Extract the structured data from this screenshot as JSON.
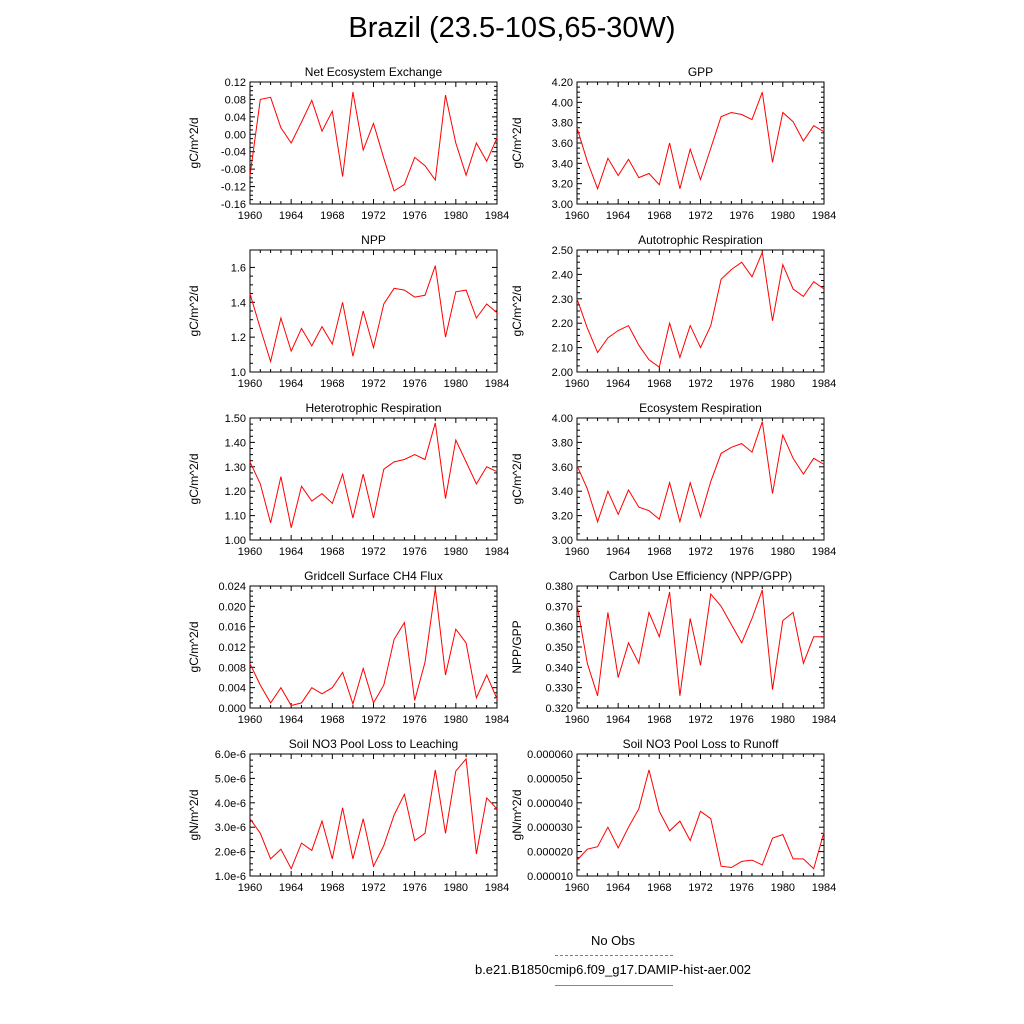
{
  "title": "Brazil (23.5-10S,65-30W)",
  "legend": {
    "items": [
      {
        "label": "No Obs",
        "color": "#7070e0",
        "style": "dashed"
      },
      {
        "label": "b.e21.B1850cmip6.f09_g17.DAMIP-hist-aer.002",
        "color": "#e06060",
        "style": "solid"
      }
    ]
  },
  "line_color": "#ff0000",
  "chart_data": [
    {
      "type": "line",
      "title": "Net Ecosystem Exchange",
      "ylabel": "gC/m^2/d",
      "xlim": [
        1960,
        1984
      ],
      "ylim": [
        -0.16,
        0.12
      ],
      "xticks": [
        1960,
        1964,
        1968,
        1972,
        1976,
        1980,
        1984
      ],
      "yticks": [
        -0.16,
        -0.12,
        -0.08,
        -0.04,
        0.0,
        0.04,
        0.08,
        0.12
      ],
      "ytick_labels": [
        "-0.16",
        "-0.12",
        "-0.08",
        "-0.04",
        "0.00",
        "0.04",
        "0.08",
        "0.12"
      ],
      "x": [
        1960,
        1961,
        1962,
        1963,
        1964,
        1965,
        1966,
        1967,
        1968,
        1969,
        1970,
        1971,
        1972,
        1973,
        1974,
        1975,
        1976,
        1977,
        1978,
        1979,
        1980,
        1981,
        1982,
        1983,
        1984
      ],
      "series": [
        {
          "values": [
            -0.095,
            0.08,
            0.085,
            0.015,
            -0.02,
            0.028,
            0.078,
            0.007,
            0.053,
            -0.097,
            0.097,
            -0.036,
            0.025,
            -0.055,
            -0.13,
            -0.115,
            -0.053,
            -0.072,
            -0.105,
            0.09,
            -0.02,
            -0.094,
            -0.02,
            -0.062,
            -0.008
          ]
        }
      ]
    },
    {
      "type": "line",
      "title": "GPP",
      "ylabel": "gC/m^2/d",
      "xlim": [
        1960,
        1984
      ],
      "ylim": [
        3.0,
        4.2
      ],
      "xticks": [
        1960,
        1964,
        1968,
        1972,
        1976,
        1980,
        1984
      ],
      "yticks": [
        3.0,
        3.2,
        3.4,
        3.6,
        3.8,
        4.0,
        4.2
      ],
      "ytick_labels": [
        "3.00",
        "3.20",
        "3.40",
        "3.60",
        "3.80",
        "4.00",
        "4.20"
      ],
      "x": [
        1960,
        1961,
        1962,
        1963,
        1964,
        1965,
        1966,
        1967,
        1968,
        1969,
        1970,
        1971,
        1972,
        1973,
        1974,
        1975,
        1976,
        1977,
        1978,
        1979,
        1980,
        1981,
        1982,
        1983,
        1984
      ],
      "series": [
        {
          "values": [
            3.75,
            3.42,
            3.15,
            3.45,
            3.28,
            3.44,
            3.26,
            3.3,
            3.19,
            3.6,
            3.15,
            3.54,
            3.24,
            3.55,
            3.86,
            3.9,
            3.88,
            3.83,
            4.1,
            3.41,
            3.9,
            3.81,
            3.62,
            3.77,
            3.71
          ]
        }
      ]
    },
    {
      "type": "line",
      "title": "NPP",
      "ylabel": "gC/m^2/d",
      "xlim": [
        1960,
        1984
      ],
      "ylim": [
        1.0,
        1.7
      ],
      "xticks": [
        1960,
        1964,
        1968,
        1972,
        1976,
        1980,
        1984
      ],
      "yticks": [
        1.0,
        1.2,
        1.4,
        1.6
      ],
      "ytick_labels": [
        "1.0",
        "1.2",
        "1.4",
        "1.6"
      ],
      "x": [
        1960,
        1961,
        1962,
        1963,
        1964,
        1965,
        1966,
        1967,
        1968,
        1969,
        1970,
        1971,
        1972,
        1973,
        1974,
        1975,
        1976,
        1977,
        1978,
        1979,
        1980,
        1981,
        1982,
        1983,
        1984
      ],
      "series": [
        {
          "values": [
            1.45,
            1.25,
            1.06,
            1.31,
            1.12,
            1.25,
            1.15,
            1.26,
            1.16,
            1.4,
            1.09,
            1.35,
            1.14,
            1.39,
            1.48,
            1.47,
            1.43,
            1.44,
            1.61,
            1.2,
            1.46,
            1.47,
            1.31,
            1.39,
            1.34
          ]
        }
      ]
    },
    {
      "type": "line",
      "title": "Autotrophic Respiration",
      "ylabel": "gC/m^2/d",
      "xlim": [
        1960,
        1984
      ],
      "ylim": [
        2.0,
        2.5
      ],
      "xticks": [
        1960,
        1964,
        1968,
        1972,
        1976,
        1980,
        1984
      ],
      "yticks": [
        2.0,
        2.1,
        2.2,
        2.3,
        2.4,
        2.5
      ],
      "ytick_labels": [
        "2.00",
        "2.10",
        "2.20",
        "2.30",
        "2.40",
        "2.50"
      ],
      "x": [
        1960,
        1961,
        1962,
        1963,
        1964,
        1965,
        1966,
        1967,
        1968,
        1969,
        1970,
        1971,
        1972,
        1973,
        1974,
        1975,
        1976,
        1977,
        1978,
        1979,
        1980,
        1981,
        1982,
        1983,
        1984
      ],
      "series": [
        {
          "values": [
            2.3,
            2.18,
            2.08,
            2.14,
            2.17,
            2.19,
            2.11,
            2.05,
            2.02,
            2.2,
            2.06,
            2.19,
            2.1,
            2.19,
            2.38,
            2.42,
            2.45,
            2.39,
            2.49,
            2.21,
            2.44,
            2.34,
            2.31,
            2.37,
            2.34
          ]
        }
      ]
    },
    {
      "type": "line",
      "title": "Heterotrophic Respiration",
      "ylabel": "gC/m^2/d",
      "xlim": [
        1960,
        1984
      ],
      "ylim": [
        1.0,
        1.5
      ],
      "xticks": [
        1960,
        1964,
        1968,
        1972,
        1976,
        1980,
        1984
      ],
      "yticks": [
        1.0,
        1.1,
        1.2,
        1.3,
        1.4,
        1.5
      ],
      "ytick_labels": [
        "1.00",
        "1.10",
        "1.20",
        "1.30",
        "1.40",
        "1.50"
      ],
      "x": [
        1960,
        1961,
        1962,
        1963,
        1964,
        1965,
        1966,
        1967,
        1968,
        1969,
        1970,
        1971,
        1972,
        1973,
        1974,
        1975,
        1976,
        1977,
        1978,
        1979,
        1980,
        1981,
        1982,
        1983,
        1984
      ],
      "series": [
        {
          "values": [
            1.32,
            1.23,
            1.07,
            1.26,
            1.05,
            1.22,
            1.16,
            1.19,
            1.15,
            1.27,
            1.09,
            1.27,
            1.09,
            1.29,
            1.32,
            1.33,
            1.35,
            1.33,
            1.48,
            1.17,
            1.41,
            1.32,
            1.23,
            1.3,
            1.28
          ]
        }
      ]
    },
    {
      "type": "line",
      "title": "Ecosystem Respiration",
      "ylabel": "gC/m^2/d",
      "xlim": [
        1960,
        1984
      ],
      "ylim": [
        3.0,
        4.0
      ],
      "xticks": [
        1960,
        1964,
        1968,
        1972,
        1976,
        1980,
        1984
      ],
      "yticks": [
        3.0,
        3.2,
        3.4,
        3.6,
        3.8,
        4.0
      ],
      "ytick_labels": [
        "3.00",
        "3.20",
        "3.40",
        "3.60",
        "3.80",
        "4.00"
      ],
      "x": [
        1960,
        1961,
        1962,
        1963,
        1964,
        1965,
        1966,
        1967,
        1968,
        1969,
        1970,
        1971,
        1972,
        1973,
        1974,
        1975,
        1976,
        1977,
        1978,
        1979,
        1980,
        1981,
        1982,
        1983,
        1984
      ],
      "series": [
        {
          "values": [
            3.61,
            3.42,
            3.15,
            3.4,
            3.21,
            3.41,
            3.27,
            3.24,
            3.17,
            3.47,
            3.15,
            3.47,
            3.19,
            3.48,
            3.71,
            3.76,
            3.79,
            3.72,
            3.97,
            3.38,
            3.86,
            3.67,
            3.54,
            3.67,
            3.62
          ]
        }
      ]
    },
    {
      "type": "line",
      "title": "Gridcell Surface CH4 Flux",
      "ylabel": "gC/m^2/d",
      "xlim": [
        1960,
        1984
      ],
      "ylim": [
        0.0,
        0.024
      ],
      "xticks": [
        1960,
        1964,
        1968,
        1972,
        1976,
        1980,
        1984
      ],
      "yticks": [
        0.0,
        0.004,
        0.008,
        0.012,
        0.016,
        0.02,
        0.024
      ],
      "ytick_labels": [
        "0.000",
        "0.004",
        "0.008",
        "0.012",
        "0.016",
        "0.020",
        "0.024"
      ],
      "x": [
        1960,
        1961,
        1962,
        1963,
        1964,
        1965,
        1966,
        1967,
        1968,
        1969,
        1970,
        1971,
        1972,
        1973,
        1974,
        1975,
        1976,
        1977,
        1978,
        1979,
        1980,
        1981,
        1982,
        1983,
        1984
      ],
      "series": [
        {
          "values": [
            0.0087,
            0.0045,
            0.001,
            0.004,
            0.0005,
            0.001,
            0.004,
            0.0028,
            0.004,
            0.007,
            0.0008,
            0.0078,
            0.001,
            0.0045,
            0.0135,
            0.0168,
            0.0015,
            0.009,
            0.0235,
            0.0065,
            0.0155,
            0.0128,
            0.002,
            0.0065,
            0.0018
          ]
        }
      ]
    },
    {
      "type": "line",
      "title": "Carbon Use Efficiency (NPP/GPP)",
      "ylabel": "NPP/GPP",
      "xlim": [
        1960,
        1984
      ],
      "ylim": [
        0.32,
        0.38
      ],
      "xticks": [
        1960,
        1964,
        1968,
        1972,
        1976,
        1980,
        1984
      ],
      "yticks": [
        0.32,
        0.33,
        0.34,
        0.35,
        0.36,
        0.37,
        0.38
      ],
      "ytick_labels": [
        "0.320",
        "0.330",
        "0.340",
        "0.350",
        "0.360",
        "0.370",
        "0.380"
      ],
      "x": [
        1960,
        1961,
        1962,
        1963,
        1964,
        1965,
        1966,
        1967,
        1968,
        1969,
        1970,
        1971,
        1972,
        1973,
        1974,
        1975,
        1976,
        1977,
        1978,
        1979,
        1980,
        1981,
        1982,
        1983,
        1984
      ],
      "series": [
        {
          "values": [
            0.371,
            0.342,
            0.326,
            0.367,
            0.335,
            0.352,
            0.342,
            0.367,
            0.355,
            0.377,
            0.326,
            0.364,
            0.341,
            0.376,
            0.37,
            0.361,
            0.352,
            0.364,
            0.378,
            0.329,
            0.363,
            0.367,
            0.342,
            0.355,
            0.355
          ]
        }
      ]
    },
    {
      "type": "line",
      "title": "Soil NO3 Pool Loss to Leaching",
      "ylabel": "gN/m^2/d",
      "xlim": [
        1960,
        1984
      ],
      "ylim": [
        1e-06,
        6e-06
      ],
      "xticks": [
        1960,
        1964,
        1968,
        1972,
        1976,
        1980,
        1984
      ],
      "yticks": [
        1e-06,
        2e-06,
        3e-06,
        4e-06,
        5e-06,
        6e-06
      ],
      "ytick_labels": [
        "1.0e-6",
        "2.0e-6",
        "3.0e-6",
        "4.0e-6",
        "5.0e-6",
        "6.0e-6"
      ],
      "x": [
        1960,
        1961,
        1962,
        1963,
        1964,
        1965,
        1966,
        1967,
        1968,
        1969,
        1970,
        1971,
        1972,
        1973,
        1974,
        1975,
        1976,
        1977,
        1978,
        1979,
        1980,
        1981,
        1982,
        1983,
        1984
      ],
      "series": [
        {
          "values": [
            3.35e-06,
            2.75e-06,
            1.7e-06,
            2.1e-06,
            1.3e-06,
            2.35e-06,
            2.05e-06,
            3.25e-06,
            1.7e-06,
            3.8e-06,
            1.7e-06,
            3.35e-06,
            1.4e-06,
            2.25e-06,
            3.5e-06,
            4.35e-06,
            2.45e-06,
            2.75e-06,
            5.35e-06,
            2.75e-06,
            5.3e-06,
            5.8e-06,
            1.9e-06,
            4.2e-06,
            3.75e-06
          ]
        }
      ]
    },
    {
      "type": "line",
      "title": "Soil NO3 Pool Loss to Runoff",
      "ylabel": "gN/m^2/d",
      "xlim": [
        1960,
        1984
      ],
      "ylim": [
        1e-05,
        6e-05
      ],
      "xticks": [
        1960,
        1964,
        1968,
        1972,
        1976,
        1980,
        1984
      ],
      "yticks": [
        1e-05,
        2e-05,
        3e-05,
        4e-05,
        5e-05,
        6e-05
      ],
      "ytick_labels": [
        "0.000010",
        "0.000020",
        "0.000030",
        "0.000040",
        "0.000050",
        "0.000060"
      ],
      "x": [
        1960,
        1961,
        1962,
        1963,
        1964,
        1965,
        1966,
        1967,
        1968,
        1969,
        1970,
        1971,
        1972,
        1973,
        1974,
        1975,
        1976,
        1977,
        1978,
        1979,
        1980,
        1981,
        1982,
        1983,
        1984
      ],
      "series": [
        {
          "values": [
            1.65e-05,
            2.1e-05,
            2.2e-05,
            3e-05,
            2.15e-05,
            3e-05,
            3.75e-05,
            5.35e-05,
            3.65e-05,
            2.85e-05,
            3.25e-05,
            2.45e-05,
            3.65e-05,
            3.35e-05,
            1.4e-05,
            1.35e-05,
            1.6e-05,
            1.65e-05,
            1.45e-05,
            2.55e-05,
            2.7e-05,
            1.7e-05,
            1.7e-05,
            1.3e-05,
            2.8e-05
          ]
        }
      ]
    }
  ]
}
